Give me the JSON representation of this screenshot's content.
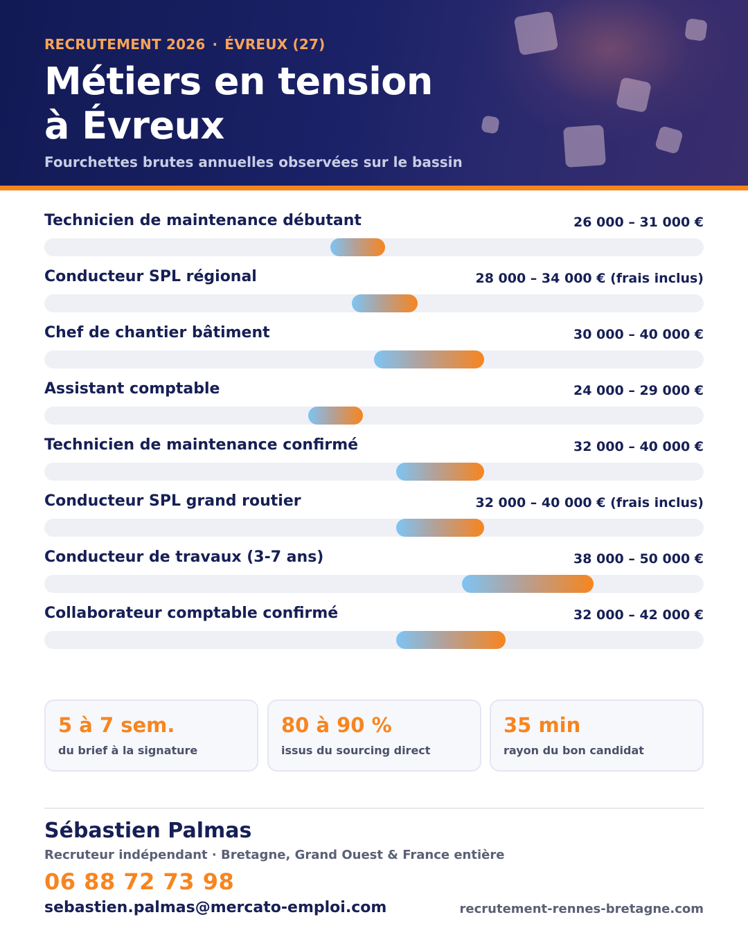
{
  "header": {
    "kicker_left": "RECRUTEMENT 2026",
    "kicker_separator": "·",
    "kicker_right": "ÉVREUX (27)",
    "title_line1": "Métiers en tension",
    "title_line2": "à Évreux",
    "subtitle": "Fourchettes brutes annuelles observées sur le bassin"
  },
  "colors": {
    "navy": "#161f55",
    "orange": "#f7851f",
    "track": "#eef0f6",
    "gradient_start": "#7ec4f3"
  },
  "chart_data": {
    "type": "bar",
    "orientation": "horizontal-range",
    "unit": "€",
    "xlim": [
      0,
      60000
    ],
    "categories": [
      "Technicien de maintenance débutant",
      "Conducteur SPL régional",
      "Chef de chantier bâtiment",
      "Assistant comptable",
      "Technicien de maintenance confirmé",
      "Conducteur SPL grand routier",
      "Conducteur de travaux (3-7 ans)",
      "Collaborateur comptable confirmé"
    ],
    "ranges": [
      {
        "min": 26000,
        "max": 31000,
        "label": "26 000 – 31 000 €"
      },
      {
        "min": 28000,
        "max": 34000,
        "label": "28 000 – 34 000 € (frais inclus)"
      },
      {
        "min": 30000,
        "max": 40000,
        "label": "30 000 – 40 000 €"
      },
      {
        "min": 24000,
        "max": 29000,
        "label": "24 000 – 29 000 €"
      },
      {
        "min": 32000,
        "max": 40000,
        "label": "32 000 – 40 000 €"
      },
      {
        "min": 32000,
        "max": 40000,
        "label": "32 000 – 40 000 € (frais inclus)"
      },
      {
        "min": 38000,
        "max": 50000,
        "label": "38 000 – 50 000 €"
      },
      {
        "min": 32000,
        "max": 42000,
        "label": "32 000 – 42 000 €"
      }
    ]
  },
  "stats": [
    {
      "value": "5 à 7 sem.",
      "label": "du brief à la signature"
    },
    {
      "value": "80 à 90 %",
      "label": "issus du sourcing direct"
    },
    {
      "value": "35 min",
      "label": "rayon du bon candidat"
    }
  ],
  "contact": {
    "name": "Sébastien Palmas",
    "role": "Recruteur indépendant · Bretagne, Grand Ouest & France entière",
    "phone": "06 88 72 73 98",
    "email": "sebastien.palmas@mercato-emploi.com",
    "website": "recrutement-rennes-bretagne.com"
  }
}
